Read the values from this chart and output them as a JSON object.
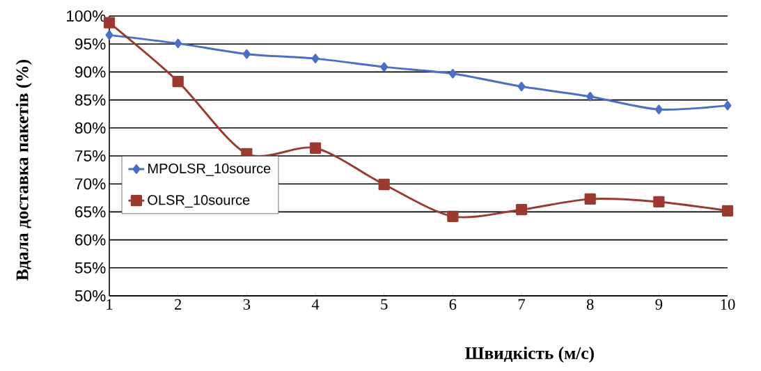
{
  "chart_data": {
    "type": "line",
    "xlabel": "Швидкість (м/с)",
    "ylabel": "Вдала доставка пакетів (%)",
    "x": [
      1,
      2,
      3,
      4,
      5,
      6,
      7,
      8,
      9,
      10
    ],
    "series": [
      {
        "name": "MPOLSR_10source",
        "color": "#4a6fc4",
        "marker": "diamond",
        "values": [
          96.6,
          95.1,
          93.2,
          92.4,
          90.9,
          89.7,
          87.4,
          85.6,
          83.3,
          84.0
        ]
      },
      {
        "name": "OLSR_10source",
        "color": "#9b3a2e",
        "marker": "square",
        "values": [
          98.8,
          88.3,
          75.4,
          76.4,
          69.9,
          64.2,
          65.4,
          67.3,
          66.8,
          65.2
        ]
      }
    ],
    "xlim": [
      1,
      10
    ],
    "xticks": [
      1,
      2,
      3,
      4,
      5,
      6,
      7,
      8,
      9,
      10
    ],
    "ylim": [
      50,
      100
    ],
    "yticks": [
      {
        "value": 50,
        "label": "50%"
      },
      {
        "value": 55,
        "label": "55%"
      },
      {
        "value": 60,
        "label": "60%"
      },
      {
        "value": 65,
        "label": "65%"
      },
      {
        "value": 70,
        "label": "70%"
      },
      {
        "value": 75,
        "label": "75%"
      },
      {
        "value": 80,
        "label": "80%"
      },
      {
        "value": 85,
        "label": "85%"
      },
      {
        "value": 90,
        "label": "90%"
      },
      {
        "value": 95,
        "label": "95%"
      },
      {
        "value": 100,
        "label": "100%"
      }
    ],
    "grid": "y",
    "legend": "left"
  }
}
